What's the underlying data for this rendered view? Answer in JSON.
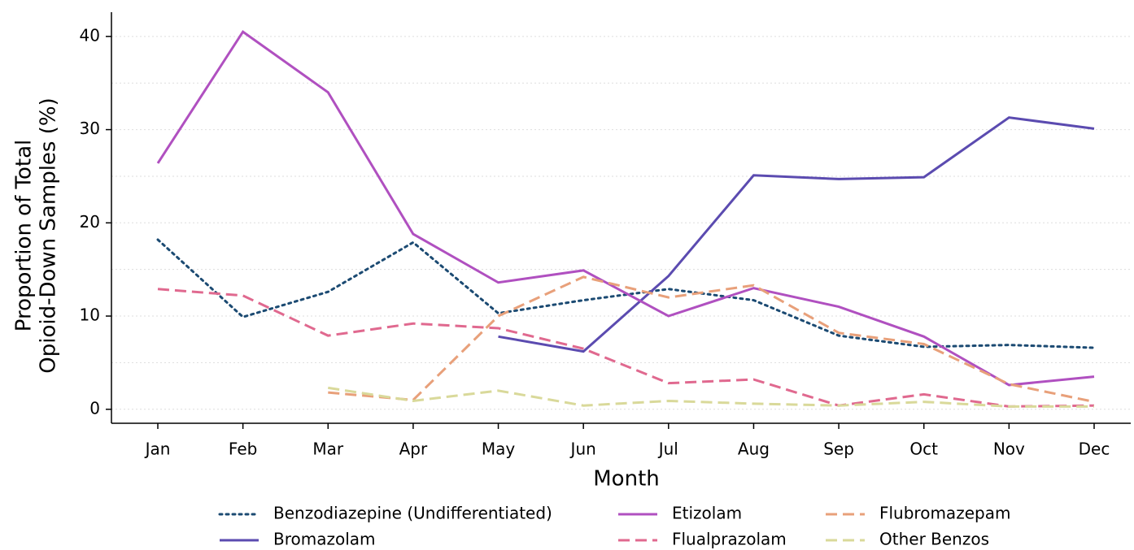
{
  "chart_data": {
    "type": "line",
    "xlabel": "Month",
    "ylabel": [
      "Proportion of Total",
      "Opioid-Down Samples (%)"
    ],
    "categories": [
      "Jan",
      "Feb",
      "Mar",
      "Apr",
      "May",
      "Jun",
      "Jul",
      "Aug",
      "Sep",
      "Oct",
      "Nov",
      "Dec"
    ],
    "ylim": [
      -1.5,
      42.6
    ],
    "yticks": [
      0,
      10,
      20,
      30,
      40
    ],
    "minor_yticks": [
      5,
      15,
      25,
      35
    ],
    "grid": true,
    "legend": "bottom",
    "series": [
      {
        "name": "Benzodiazepine (Undifferentiated)",
        "color": "#1b4a72",
        "dash": "dotted",
        "values": [
          18.2,
          9.9,
          12.6,
          17.9,
          10.3,
          11.7,
          12.9,
          11.7,
          7.9,
          6.7,
          6.9,
          6.6
        ]
      },
      {
        "name": "Bromazolam",
        "color": "#5b4bb0",
        "dash": "solid",
        "values": [
          null,
          null,
          null,
          null,
          7.8,
          6.2,
          14.3,
          25.1,
          24.7,
          24.9,
          31.3,
          30.1
        ]
      },
      {
        "name": "Etizolam",
        "color": "#b050c0",
        "dash": "solid",
        "values": [
          26.4,
          40.5,
          34.0,
          18.8,
          13.6,
          14.9,
          10.0,
          13.0,
          11.0,
          7.8,
          2.6,
          3.5
        ]
      },
      {
        "name": "Flualprazolam",
        "color": "#e0698f",
        "dash": "dashed",
        "values": [
          12.9,
          12.2,
          7.9,
          9.2,
          8.7,
          6.5,
          2.8,
          3.2,
          0.4,
          1.6,
          0.3,
          0.4
        ]
      },
      {
        "name": "Flubromazepam",
        "color": "#e8a07a",
        "dash": "dashed",
        "values": [
          null,
          null,
          1.8,
          1.0,
          10.0,
          14.2,
          12.0,
          13.3,
          8.2,
          7.0,
          2.7,
          0.8
        ]
      },
      {
        "name": "Other Benzos",
        "color": "#d9d99a",
        "dash": "dashed",
        "values": [
          null,
          null,
          2.3,
          0.9,
          2.0,
          0.4,
          0.9,
          0.6,
          0.4,
          0.8,
          0.3,
          0.3
        ]
      }
    ]
  }
}
